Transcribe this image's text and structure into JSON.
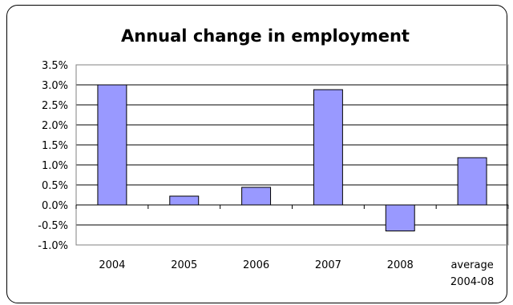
{
  "chart_data": {
    "type": "bar",
    "title": "Annual change in employment",
    "xlabel": "",
    "ylabel": "",
    "categories": [
      "2004",
      "2005",
      "2006",
      "2007",
      "2008",
      "average\n2004-08"
    ],
    "values": [
      3.0,
      0.22,
      0.44,
      2.88,
      -0.65,
      1.18
    ],
    "unit": "%",
    "ylim": [
      -1.0,
      3.5
    ],
    "ytick_step": 0.5,
    "ytick_labels": [
      "3.5%",
      "3.0%",
      "2.5%",
      "2.0%",
      "1.5%",
      "1.0%",
      "0.5%",
      "0.0%",
      "-0.5%",
      "-1.0%"
    ],
    "grid": true,
    "legend": "none",
    "colors": {
      "bar_fill": "#9999ff",
      "bar_stroke": "#000000",
      "plot_border": "#808080"
    }
  }
}
